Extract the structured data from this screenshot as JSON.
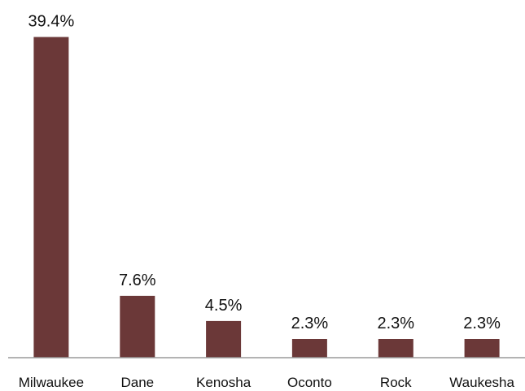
{
  "chart_data": {
    "type": "bar",
    "title": "",
    "xlabel": "",
    "ylabel": "",
    "categories": [
      "Milwaukee",
      "Dane",
      "Kenosha",
      "Oconto",
      "Rock",
      "Waukesha"
    ],
    "values": [
      39.4,
      7.6,
      4.5,
      2.3,
      2.3,
      2.3
    ],
    "data_labels": [
      "39.4%",
      "7.6%",
      "4.5%",
      "2.3%",
      "2.3%",
      "2.3%"
    ],
    "ylim": [
      0,
      40
    ],
    "grid": false,
    "legend": "none",
    "colors": {
      "bar": "#6b3838",
      "axis": "#9a9a9a",
      "text": "#111111"
    }
  }
}
